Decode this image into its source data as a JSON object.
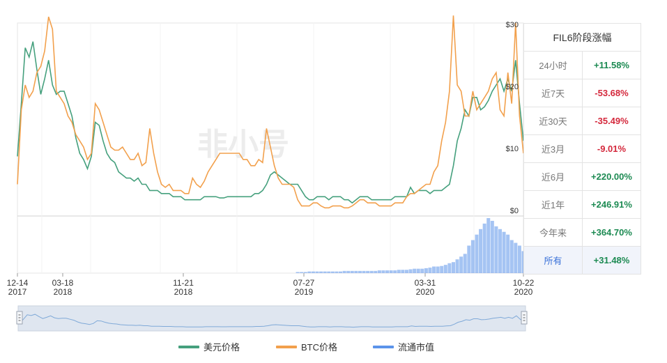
{
  "chart_data": {
    "type": "line",
    "title": "",
    "watermark": "非小号",
    "y_axis": {
      "labels": [
        "$0",
        "$10",
        "$20",
        "$30"
      ],
      "values": [
        0,
        10,
        20,
        30
      ],
      "ylim": [
        0,
        31
      ]
    },
    "x_axis": {
      "ticks": [
        {
          "day": "12-14",
          "year": "2017"
        },
        {
          "day": "03-18",
          "year": "2018"
        },
        {
          "day": "11-21",
          "year": "2018"
        },
        {
          "day": "07-27",
          "year": "2019"
        },
        {
          "day": "03-31",
          "year": "2020"
        },
        {
          "day": "10-22",
          "year": "2020"
        }
      ]
    },
    "series": [
      {
        "name": "美元价格",
        "color": "#45a07d",
        "values": [
          9.5,
          18,
          27,
          25.5,
          28,
          23.5,
          19.5,
          22,
          25,
          21,
          19.5,
          20,
          20,
          18,
          16,
          12.5,
          10,
          9,
          7.5,
          9.5,
          15,
          14.5,
          12,
          10,
          9,
          8.5,
          7,
          6.5,
          6,
          6,
          5.5,
          6,
          5,
          5,
          4,
          4,
          4,
          3.5,
          3.5,
          3.5,
          3,
          3,
          3,
          2.5,
          2.5,
          2.5,
          2.5,
          2.5,
          3,
          3,
          3,
          3,
          2.8,
          2.8,
          3,
          3,
          3,
          3,
          3,
          3,
          3,
          3.5,
          3.5,
          4,
          5,
          6.5,
          7,
          6.5,
          6,
          5.5,
          5,
          5,
          5,
          4,
          3,
          2.5,
          2.5,
          3,
          3,
          3,
          2.5,
          3,
          3,
          3,
          2.5,
          2.5,
          2,
          2.5,
          3,
          3,
          3,
          2.5,
          2.5,
          2.5,
          2.5,
          2.5,
          2.5,
          3,
          3,
          3,
          3,
          4.5,
          3.5,
          4,
          4,
          4,
          3.5,
          4,
          4,
          4,
          4.5,
          5,
          8,
          12,
          14,
          17,
          16,
          19,
          19,
          17,
          17.5,
          18.5,
          20,
          21,
          22,
          20,
          22,
          20,
          25,
          18,
          12
        ]
      },
      {
        "name": "BTC价格",
        "color": "#f2a04c",
        "values": [
          5,
          17,
          21,
          19,
          20,
          23,
          24,
          26.5,
          32,
          30,
          20,
          19,
          18,
          16,
          15,
          13,
          12,
          11,
          9,
          10,
          18,
          17,
          15,
          13,
          11,
          10.5,
          10.5,
          11,
          10,
          9,
          9,
          10,
          8,
          8.5,
          14,
          10,
          7,
          5,
          4.5,
          5,
          4,
          4,
          4,
          3.5,
          3.5,
          6,
          5,
          4.5,
          5.5,
          7,
          8,
          9,
          10,
          10,
          10,
          10,
          10,
          10,
          9,
          9,
          8,
          8,
          9,
          8.5,
          14,
          11,
          8,
          6,
          5,
          5,
          5,
          4.5,
          2.5,
          1.5,
          1.5,
          1.5,
          2,
          2,
          1.5,
          1.2,
          1.2,
          1.5,
          1.5,
          1.5,
          1.2,
          1.2,
          1.5,
          2,
          2.5,
          2.5,
          2,
          2,
          2,
          1.5,
          1.5,
          1.5,
          1.5,
          2,
          2,
          2,
          3,
          3.5,
          3.5,
          4,
          4.5,
          5,
          5,
          7,
          8,
          12,
          15,
          20,
          35,
          21,
          20,
          16,
          16,
          20,
          17,
          18,
          19,
          20,
          22,
          23,
          17,
          16,
          23,
          18,
          31,
          16,
          10
        ]
      },
      {
        "name": "流通市值",
        "color": "#5b93ea",
        "values": [
          0,
          0,
          0,
          0,
          0,
          0,
          0,
          0,
          0,
          0,
          0,
          0,
          0,
          0,
          0,
          0,
          0,
          0,
          0,
          0,
          0,
          0,
          0,
          0,
          0,
          0,
          0,
          0,
          0,
          0,
          0,
          0,
          0,
          0,
          0,
          0,
          0,
          0,
          0,
          0,
          0,
          0,
          0,
          0,
          0,
          0,
          0,
          0,
          0,
          0,
          0,
          0,
          0,
          0,
          0,
          0,
          0,
          0,
          0,
          0,
          0,
          0,
          0,
          0,
          0,
          0,
          0,
          0,
          0,
          0,
          0,
          0,
          0.02,
          0.02,
          0.02,
          0.03,
          0.03,
          0.03,
          0.03,
          0.03,
          0.03,
          0.03,
          0.03,
          0.03,
          0.04,
          0.04,
          0.04,
          0.04,
          0.04,
          0.04,
          0.04,
          0.04,
          0.04,
          0.05,
          0.05,
          0.05,
          0.05,
          0.05,
          0.06,
          0.06,
          0.06,
          0.07,
          0.08,
          0.08,
          0.08,
          0.09,
          0.1,
          0.12,
          0.12,
          0.13,
          0.15,
          0.18,
          0.2,
          0.25,
          0.3,
          0.35,
          0.5,
          0.6,
          0.7,
          0.8,
          0.9,
          1.0,
          0.95,
          0.85,
          0.8,
          0.75,
          0.7,
          0.6,
          0.55,
          0.5,
          0.4
        ]
      }
    ],
    "legend": {
      "position": "bottom"
    }
  },
  "stats": {
    "title": "FIL6阶段涨幅",
    "rows": [
      {
        "period": "24小时",
        "change": "+11.58%",
        "sign": "pos"
      },
      {
        "period": "近7天",
        "change": "-53.68%",
        "sign": "neg"
      },
      {
        "period": "近30天",
        "change": "-35.49%",
        "sign": "neg"
      },
      {
        "period": "近3月",
        "change": "-9.01%",
        "sign": "neg"
      },
      {
        "period": "近6月",
        "change": "+220.00%",
        "sign": "pos"
      },
      {
        "period": "近1年",
        "change": "+246.91%",
        "sign": "pos"
      },
      {
        "period": "今年来",
        "change": "+364.70%",
        "sign": "pos"
      },
      {
        "period": "所有",
        "change": "+31.48%",
        "sign": "pos",
        "selected": true
      }
    ]
  },
  "colors": {
    "accent": "#3b72d9",
    "positive": "#1c8a52",
    "negative": "#d4283c"
  }
}
